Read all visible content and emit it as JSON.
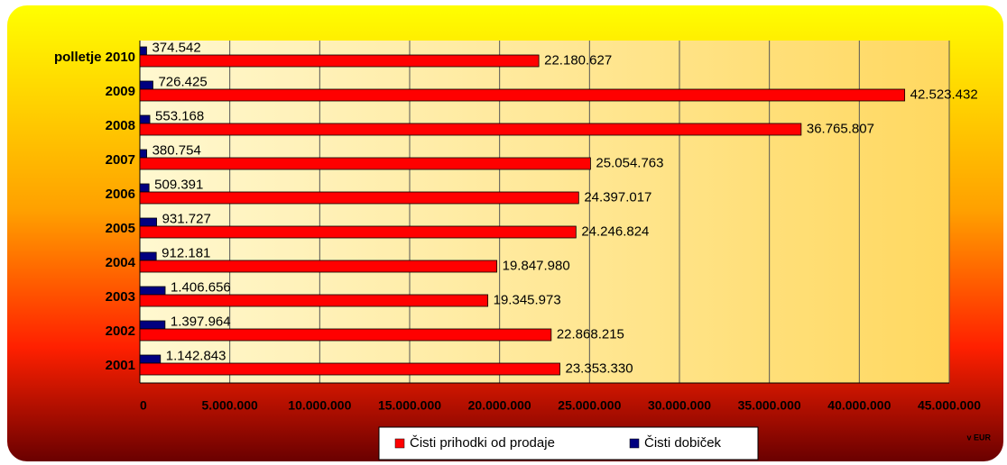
{
  "chart_data": {
    "type": "hbar",
    "categories": [
      "polletje 2010",
      "2009",
      "2008",
      "2007",
      "2006",
      "2005",
      "2004",
      "2003",
      "2002",
      "2001"
    ],
    "series": [
      {
        "name": "Čisti prihodki od prodaje",
        "color": "#ff0000",
        "values": [
          22180627,
          42523432,
          36765807,
          25054763,
          24397017,
          24246824,
          19847980,
          19345973,
          22868215,
          23353330
        ],
        "value_labels": [
          "22.180.627",
          "42.523.432",
          "36.765.807",
          "25.054.763",
          "24.397.017",
          "24.246.824",
          "19.847.980",
          "19.345.973",
          "22.868.215",
          "23.353.330"
        ]
      },
      {
        "name": "Čisti dobiček",
        "color": "#000080",
        "values": [
          374542,
          726425,
          553168,
          380754,
          509391,
          931727,
          912181,
          1406656,
          1397964,
          1142843
        ],
        "value_labels": [
          "374.542",
          "726.425",
          "553.168",
          "380.754",
          "509.391",
          "931.727",
          "912.181",
          "1.406.656",
          "1.397.964",
          "1.142.843"
        ]
      }
    ],
    "xlim": [
      0,
      45000000
    ],
    "xticks": [
      0,
      {
        "value": 5000000,
        "label": "5.000.000"
      },
      {
        "value": 10000000,
        "label": "10.000.000"
      },
      {
        "value": 15000000,
        "label": "15.000.000"
      },
      {
        "value": 20000000,
        "label": "20.000.000"
      },
      {
        "value": 25000000,
        "label": "25.000.000"
      },
      {
        "value": 30000000,
        "label": "30.000.000"
      },
      {
        "value": 35000000,
        "label": "35.000.000"
      },
      {
        "value": 40000000,
        "label": "40.000.000"
      },
      {
        "value": 45000000,
        "label": "45.000.000"
      }
    ],
    "grid": true,
    "unit_label": "v EUR"
  }
}
